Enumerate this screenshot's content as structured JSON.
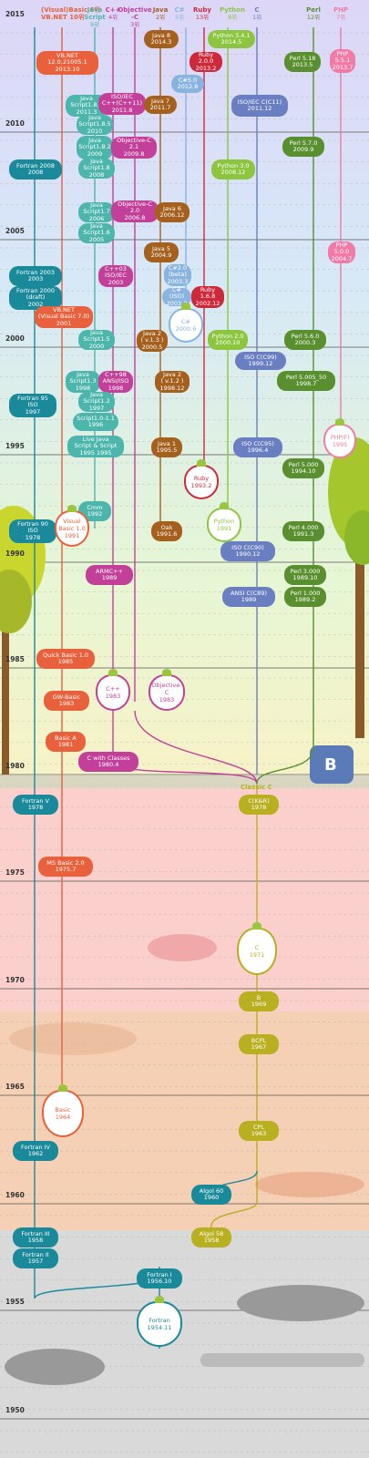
{
  "headers": [
    {
      "name": "(Visual)Basic 6위",
      "sub": "VB.NET 10위",
      "color": "#e8613c"
    },
    {
      "name": "Java",
      "sub": "Script",
      "rank": "9위",
      "color": "#4db6ac"
    },
    {
      "name": "C++",
      "rank": "4위",
      "color": "#c2409a"
    },
    {
      "name": "Objective",
      "sub": "-C",
      "rank": "3위",
      "color": "#c2409a"
    },
    {
      "name": "Java",
      "rank": "2위",
      "color": "#a5601e"
    },
    {
      "name": "C#",
      "rank": "5위",
      "color": "#8ab4e0"
    },
    {
      "name": "Ruby",
      "rank": "13위",
      "color": "#cc2a3b"
    },
    {
      "name": "Python",
      "rank": "8위",
      "color": "#8cc63f"
    },
    {
      "name": "C",
      "rank": "1위",
      "color": "#6a7fc2"
    },
    {
      "name": "Perl",
      "rank": "12위",
      "color": "#5a8f30"
    },
    {
      "name": "PHP",
      "rank": "7위",
      "color": "#f27aa6"
    }
  ],
  "years": [
    "2015",
    "2010",
    "2005",
    "2000",
    "1995",
    "1990",
    "1985",
    "1980",
    "1975",
    "1970",
    "1965",
    "1960",
    "1955",
    "1950"
  ],
  "classic_c_label": "Classic C",
  "nodes": [
    {
      "id": "vbnet2013",
      "color": "#e8613c",
      "lines": [
        "VB.NET",
        "12.0,21005.1",
        "2013.10"
      ]
    },
    {
      "id": "java8",
      "color": "#a5601e",
      "lines": [
        "Java 8",
        "2014.3"
      ]
    },
    {
      "id": "python341",
      "color": "#8cc63f",
      "lines": [
        "Python 3.4.1",
        "2014.5"
      ]
    },
    {
      "id": "perl518",
      "color": "#5a8f30",
      "lines": [
        "Perl 5.18",
        "2013.5"
      ]
    },
    {
      "id": "php551",
      "color": "#f27aa6",
      "lines": [
        "PHP",
        "5.5.1",
        "2013.7"
      ]
    },
    {
      "id": "ruby20",
      "color": "#cc2a3b",
      "lines": [
        "Ruby",
        "2.0.0",
        "2013.2"
      ]
    },
    {
      "id": "cs50",
      "color": "#8ab4e0",
      "lines": [
        "C#5.0",
        "2012.8"
      ]
    },
    {
      "id": "js185a",
      "color": "#4db6ac",
      "lines": [
        "Java",
        "Script1.8.5",
        "2011.3"
      ]
    },
    {
      "id": "cpp11",
      "color": "#c2409a",
      "lines": [
        "ISO/IEC",
        "C++(C++11)",
        "2011.8"
      ]
    },
    {
      "id": "java7",
      "color": "#a5601e",
      "lines": [
        "Java 7",
        "2011.7"
      ]
    },
    {
      "id": "c11",
      "color": "#6a7fc2",
      "lines": [
        "ISO/IEC C(C11)",
        "2011.12"
      ]
    },
    {
      "id": "js185b",
      "color": "#4db6ac",
      "lines": [
        "Java",
        "Script1.8.5",
        "2010"
      ]
    },
    {
      "id": "js182",
      "color": "#4db6ac",
      "lines": [
        "Java",
        "Script1.8.2",
        "2009"
      ]
    },
    {
      "id": "objc21",
      "color": "#c2409a",
      "lines": [
        "Objective-C",
        "2.1",
        "2009.8"
      ]
    },
    {
      "id": "perl57",
      "color": "#5a8f30",
      "lines": [
        "Perl 5.7.0",
        "2009.9"
      ]
    },
    {
      "id": "fortran2008",
      "color": "#1a8a9a",
      "lines": [
        "Fortran 2008",
        "2008"
      ]
    },
    {
      "id": "js18",
      "color": "#4db6ac",
      "lines": [
        "Java",
        "Script1.8",
        "2008"
      ]
    },
    {
      "id": "python30",
      "color": "#8cc63f",
      "lines": [
        "Python 3.0",
        "2008.12"
      ]
    },
    {
      "id": "js17",
      "color": "#4db6ac",
      "lines": [
        "Java",
        "Script1.7",
        "2006"
      ]
    },
    {
      "id": "objc20",
      "color": "#c2409a",
      "lines": [
        "Objective-C",
        "2.0",
        "2006.8"
      ]
    },
    {
      "id": "java6",
      "color": "#a5601e",
      "lines": [
        "Java 6",
        "2006.12"
      ]
    },
    {
      "id": "js16",
      "color": "#4db6ac",
      "lines": [
        "Java",
        "Script1.6",
        "2005"
      ]
    },
    {
      "id": "java5",
      "color": "#a5601e",
      "lines": [
        "Java 5",
        "2004.9"
      ]
    },
    {
      "id": "php50",
      "color": "#f27aa6",
      "lines": [
        "PHP",
        "5.0.0",
        "2004.7"
      ]
    },
    {
      "id": "fortran2003",
      "color": "#1a8a9a",
      "lines": [
        "Fortran 2003",
        "2003"
      ]
    },
    {
      "id": "cpp03",
      "color": "#c2409a",
      "lines": [
        "C++03",
        "ISO/IEC",
        "2003"
      ]
    },
    {
      "id": "cs20",
      "color": "#8ab4e0",
      "lines": [
        "C#2.0",
        "(beta)",
        "2003.3"
      ]
    },
    {
      "id": "fortran2000",
      "color": "#1a8a9a",
      "lines": [
        "Fortran 2000",
        "(draft)",
        "2002"
      ]
    },
    {
      "id": "csiso",
      "color": "#8ab4e0",
      "lines": [
        "C#(ISO)",
        "2003.3"
      ]
    },
    {
      "id": "ruby16",
      "color": "#cc2a3b",
      "lines": [
        "Ruby",
        "1.6.8",
        "2002.12"
      ]
    },
    {
      "id": "vbnet70",
      "color": "#e8613c",
      "lines": [
        "VB.NET",
        "(Visual Basic 7.0)",
        "2001"
      ]
    },
    {
      "id": "js15",
      "color": "#4db6ac",
      "lines": [
        "Java",
        "Script1.5",
        "2000"
      ]
    },
    {
      "id": "java2v13",
      "color": "#a5601e",
      "lines": [
        "Java 2",
        "( v.1.3 )",
        "2000.5"
      ]
    },
    {
      "id": "python20",
      "color": "#8cc63f",
      "lines": [
        "Python 2.0",
        "2000.10"
      ]
    },
    {
      "id": "perl56",
      "color": "#5a8f30",
      "lines": [
        "Perl 5.6.0",
        "2000.3"
      ]
    },
    {
      "id": "c99",
      "color": "#6a7fc2",
      "lines": [
        "ISO C(C99)",
        "1999.12"
      ]
    },
    {
      "id": "js13",
      "color": "#4db6ac",
      "lines": [
        "Java",
        "Script1.3",
        "1998"
      ]
    },
    {
      "id": "cpp98",
      "color": "#c2409a",
      "lines": [
        "C++98",
        "ANSI/ISO",
        "1998"
      ]
    },
    {
      "id": "java2v12",
      "color": "#a5601e",
      "lines": [
        "Java 2",
        "( v.1.2 )",
        "1998.12"
      ]
    },
    {
      "id": "perl5005",
      "color": "#5a8f30",
      "lines": [
        "Perl 5.005_50",
        "1998.7"
      ]
    },
    {
      "id": "fortran95",
      "color": "#1a8a9a",
      "lines": [
        "Fortran 95",
        "ISO",
        "1997"
      ]
    },
    {
      "id": "js12",
      "color": "#4db6ac",
      "lines": [
        "Java",
        "Script1.2",
        "1997"
      ]
    },
    {
      "id": "js101",
      "color": "#4db6ac",
      "lines": [
        "Script1.0-1.1",
        "1996"
      ]
    },
    {
      "id": "livescript",
      "color": "#4db6ac",
      "lines": [
        "Live       Java",
        "Script  &  Script",
        "1995     1995"
      ]
    },
    {
      "id": "java1",
      "color": "#a5601e",
      "lines": [
        "Java 1",
        "1995.5"
      ]
    },
    {
      "id": "c95",
      "color": "#6a7fc2",
      "lines": [
        "ISO C(C95)",
        "1996.4"
      ]
    },
    {
      "id": "perl50",
      "color": "#5a8f30",
      "lines": [
        "Perl 5.000",
        "1994.10"
      ]
    },
    {
      "id": "cmm",
      "color": "#4db6ac",
      "lines": [
        "Cmm",
        "1992"
      ]
    },
    {
      "id": "fortran90",
      "color": "#1a8a9a",
      "lines": [
        "Fortran 90",
        "ISO",
        "1978"
      ]
    },
    {
      "id": "oak",
      "color": "#a5601e",
      "lines": [
        "Oak",
        "1991.6"
      ]
    },
    {
      "id": "c90",
      "color": "#6a7fc2",
      "lines": [
        "ISO C(C90)",
        "1990.12"
      ]
    },
    {
      "id": "perl40",
      "color": "#5a8f30",
      "lines": [
        "Perl 4.000",
        "1991.3"
      ]
    },
    {
      "id": "armcpp",
      "color": "#c2409a",
      "lines": [
        "ARMC++",
        "1989"
      ]
    },
    {
      "id": "perl30",
      "color": "#5a8f30",
      "lines": [
        "Perl 3.000",
        "1989.10"
      ]
    },
    {
      "id": "c89",
      "color": "#6a7fc2",
      "lines": [
        "ANSI C(C89)",
        "1989"
      ]
    },
    {
      "id": "perl10",
      "color": "#5a8f30",
      "lines": [
        "Perl 1.000",
        "1989.2"
      ]
    },
    {
      "id": "qbasic",
      "color": "#e8613c",
      "lines": [
        "Quick Basic 1.0",
        "1985"
      ]
    },
    {
      "id": "gwbasic",
      "color": "#e8613c",
      "lines": [
        "GW-Basic",
        "1983"
      ]
    },
    {
      "id": "basica",
      "color": "#e8613c",
      "lines": [
        "Basic A",
        "1981"
      ]
    },
    {
      "id": "cwithclasses",
      "color": "#c2409a",
      "lines": [
        "C with Classes",
        "1980.4"
      ]
    },
    {
      "id": "fortran5",
      "color": "#1a8a9a",
      "lines": [
        "Fortran V",
        "1978"
      ]
    },
    {
      "id": "ckr",
      "color": "#b8b020",
      "lines": [
        "C(K&R)",
        "1978"
      ]
    },
    {
      "id": "msbasic",
      "color": "#e8613c",
      "lines": [
        "MS Basic 2.0",
        "1975.7"
      ]
    },
    {
      "id": "b",
      "color": "#b8b020",
      "lines": [
        "B",
        "1969"
      ]
    },
    {
      "id": "bcpl",
      "color": "#b8b020",
      "lines": [
        "BCPL",
        "1967"
      ]
    },
    {
      "id": "cpl",
      "color": "#b8b020",
      "lines": [
        "CPL",
        "1963"
      ]
    },
    {
      "id": "fortran4",
      "color": "#1a8a9a",
      "lines": [
        "Fortran IV",
        "1962"
      ]
    },
    {
      "id": "algol60",
      "color": "#1a8a9a",
      "lines": [
        "Algol 60",
        "1960"
      ]
    },
    {
      "id": "fortran3",
      "color": "#1a8a9a",
      "lines": [
        "Fortran III",
        "1958"
      ]
    },
    {
      "id": "algol58",
      "color": "#b8b020",
      "lines": [
        "Algol 58",
        "1958"
      ]
    },
    {
      "id": "fortran2",
      "color": "#1a8a9a",
      "lines": [
        "Fortran II",
        "1957"
      ]
    },
    {
      "id": "fortran1",
      "color": "#1a8a9a",
      "lines": [
        "Fortran I",
        "1956.10"
      ]
    }
  ],
  "bulbs": [
    {
      "id": "b-cs",
      "color": "#8ab4e0",
      "lines": [
        "C#",
        "2000.6"
      ]
    },
    {
      "id": "b-ruby",
      "color": "#cc2a3b",
      "lines": [
        "Ruby",
        "1993.2"
      ]
    },
    {
      "id": "b-phpfi",
      "color": "#f27aa6",
      "lines": [
        "PHP/FI",
        "1995"
      ]
    },
    {
      "id": "b-vb",
      "color": "#e8613c",
      "lines": [
        "Visual",
        "Basic 1.0",
        "1991"
      ]
    },
    {
      "id": "b-python",
      "color": "#8cc63f",
      "lines": [
        "Python",
        "1991"
      ]
    },
    {
      "id": "b-cpp",
      "color": "#c2409a",
      "lines": [
        "C++",
        "1983"
      ]
    },
    {
      "id": "b-objc",
      "color": "#c2409a",
      "lines": [
        "Objective-C",
        "1983"
      ]
    },
    {
      "id": "b-c",
      "color": "#b8b020",
      "lines": [
        "C",
        "1971"
      ]
    },
    {
      "id": "b-basic",
      "color": "#e8613c",
      "lines": [
        "Basic",
        "1964"
      ]
    },
    {
      "id": "b-fortran",
      "color": "#1a8a9a",
      "lines": [
        "Fortran",
        "1954.11"
      ]
    }
  ]
}
